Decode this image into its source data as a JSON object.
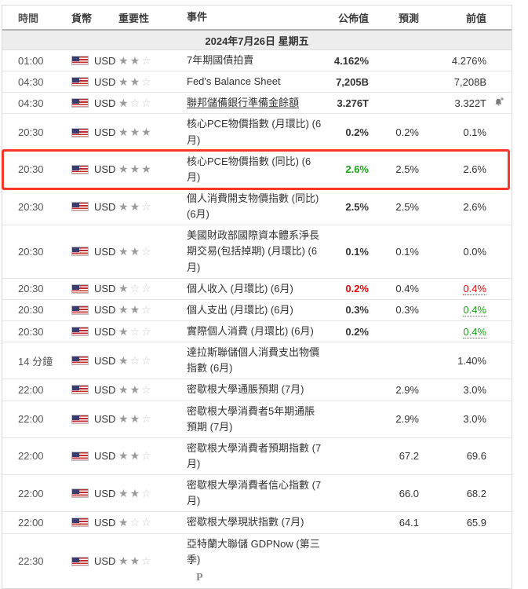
{
  "header": {
    "time": "時間",
    "currency": "貨幣",
    "importance": "重要性",
    "event": "事件",
    "actual": "公佈值",
    "forecast": "預測",
    "previous": "前值"
  },
  "date_row": {
    "label": "2024年7月26日  星期五"
  },
  "colors": {
    "better_value_green": "#1aa317",
    "worse_value_red": "#e80909",
    "annotation_highlight_red": "#f83629",
    "date_row_bg": "#ededed",
    "header_border": "#b3b3b3",
    "row_border": "#e6e6e6",
    "star_filled": "#9a9a9a",
    "star_empty": "#cdcdcd"
  },
  "icons": {
    "flag": "us-flag-icon",
    "alert": "bell-plus-icon",
    "preliminary_marker": "P"
  },
  "rows": [
    {
      "time": "01:00",
      "currency": "USD",
      "stars": 2,
      "event": "7年期國債拍賣",
      "actual": "4.162%",
      "forecast": "",
      "previous": "4.276%"
    },
    {
      "time": "04:30",
      "currency": "USD",
      "stars": 2,
      "event": "Fed's Balance Sheet",
      "actual": "7,205B",
      "forecast": "",
      "previous": "7,208B"
    },
    {
      "time": "04:30",
      "currency": "USD",
      "stars": 1,
      "event": "聯邦儲備銀行準備金餘額",
      "event_underline": true,
      "actual": "3.276T",
      "forecast": "",
      "previous": "3.322T",
      "alert": true
    },
    {
      "time": "20:30",
      "currency": "USD",
      "stars": 3,
      "event": "核心PCE物價指數 (月環比) (6月)",
      "actual": "0.2%",
      "forecast": "0.2%",
      "previous": "0.1%"
    },
    {
      "time": "20:30",
      "currency": "USD",
      "stars": 3,
      "event": "核心PCE物價指數 (同比) (6月)",
      "actual": "2.6%",
      "actual_color": "green",
      "forecast": "2.5%",
      "previous": "2.6%",
      "highlight": true
    },
    {
      "time": "20:30",
      "currency": "USD",
      "stars": 2,
      "event": "個人消費開支物價指數 (同比) (6月)",
      "actual": "2.5%",
      "forecast": "2.5%",
      "previous": "2.6%"
    },
    {
      "time": "20:30",
      "currency": "USD",
      "stars": 2,
      "event": "美國財政部國際資本體系淨長期交易(包括掉期) (月環比) (6月)",
      "actual": "0.1%",
      "forecast": "0.1%",
      "previous": "0.0%"
    },
    {
      "time": "20:30",
      "currency": "USD",
      "stars": 1,
      "event": "個人收入 (月環比) (6月)",
      "actual": "0.2%",
      "actual_color": "red",
      "forecast": "0.4%",
      "previous": "0.4%",
      "previous_color": "red",
      "previous_revised": true
    },
    {
      "time": "20:30",
      "currency": "USD",
      "stars": 2,
      "event": "個人支出 (月環比) (6月)",
      "actual": "0.3%",
      "forecast": "0.3%",
      "previous": "0.4%",
      "previous_color": "green",
      "previous_revised": true
    },
    {
      "time": "20:30",
      "currency": "USD",
      "stars": 1,
      "event": "實際個人消費 (月環比) (6月)",
      "actual": "0.2%",
      "forecast": "",
      "previous": "0.4%",
      "previous_color": "green",
      "previous_revised": true
    },
    {
      "time": "14 分鐘",
      "currency": "USD",
      "stars": 1,
      "event": "達拉斯聯儲個人消費支出物價指數 (6月)",
      "actual": "",
      "forecast": "",
      "previous": "1.40%"
    },
    {
      "time": "22:00",
      "currency": "USD",
      "stars": 2,
      "event": "密歇根大學通脹預期 (7月)",
      "actual": "",
      "forecast": "2.9%",
      "previous": "3.0%"
    },
    {
      "time": "22:00",
      "currency": "USD",
      "stars": 2,
      "event": "密歇根大學消費者5年期通脹預期 (7月)",
      "actual": "",
      "forecast": "2.9%",
      "previous": "3.0%"
    },
    {
      "time": "22:00",
      "currency": "USD",
      "stars": 2,
      "event": "密歇根大學消費者預期指數 (7月)",
      "actual": "",
      "forecast": "67.2",
      "previous": "69.6"
    },
    {
      "time": "22:00",
      "currency": "USD",
      "stars": 2,
      "event": "密歇根大學消費者信心指數 (7月)",
      "actual": "",
      "forecast": "66.0",
      "previous": "68.2"
    },
    {
      "time": "22:00",
      "currency": "USD",
      "stars": 1,
      "event": "密歇根大學現狀指數 (7月)",
      "actual": "",
      "forecast": "64.1",
      "previous": "65.9"
    },
    {
      "time": "22:30",
      "currency": "USD",
      "stars": 2,
      "event": "亞特蘭大聯儲 GDPNow (第三季)",
      "actual": "",
      "forecast": "",
      "previous": "",
      "preliminary": true
    }
  ]
}
